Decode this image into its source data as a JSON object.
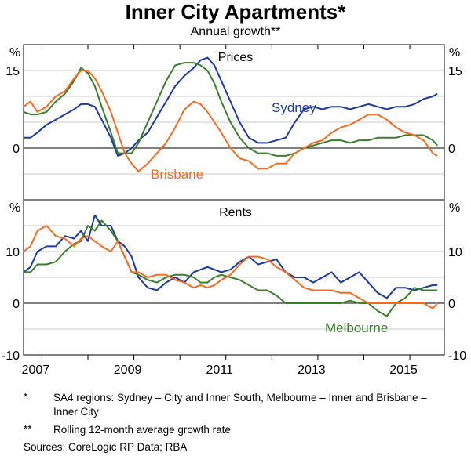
{
  "title": "Inner City Apartments*",
  "subtitle": "Annual growth**",
  "footnotes": {
    "star_mark": "*",
    "star_text": "SA4 regions: Sydney – City and Inner South, Melbourne – Inner and Brisbane – Inner City",
    "dstar_mark": "**",
    "dstar_text": "Rolling 12-month average growth rate",
    "sources": "Sources:   CoreLogic RP Data; RBA"
  },
  "colors": {
    "Sydney": "#1c3a9c",
    "Melbourne": "#3a7d2c",
    "Brisbane": "#f26b21"
  },
  "chart_data": [
    {
      "type": "line",
      "title": "Prices",
      "xlabel": "",
      "ylabel": "%",
      "xlim": [
        2006.6,
        2015.75
      ],
      "ylim": [
        -10,
        20
      ],
      "yticks": [
        -10,
        0,
        15
      ],
      "ytick_labels": [
        "",
        "0",
        "15"
      ],
      "x_ticks": [
        2007,
        2009,
        2011,
        2013,
        2015
      ],
      "x_tick_labels": [
        "2007",
        "2009",
        "2011",
        "2013",
        "2015"
      ],
      "annotations": [
        "Sydney",
        "Brisbane"
      ],
      "series": [
        {
          "name": "Sydney",
          "x": [
            2006.6,
            2006.75,
            2006.9,
            2007.1,
            2007.3,
            2007.5,
            2007.7,
            2007.85,
            2008.0,
            2008.15,
            2008.3,
            2008.5,
            2008.65,
            2008.8,
            2008.95,
            2009.1,
            2009.3,
            2009.5,
            2009.7,
            2009.9,
            2010.1,
            2010.3,
            2010.45,
            2010.6,
            2010.75,
            2010.9,
            2011.1,
            2011.3,
            2011.5,
            2011.7,
            2011.9,
            2012.1,
            2012.3,
            2012.5,
            2012.7,
            2012.9,
            2013.1,
            2013.3,
            2013.5,
            2013.7,
            2013.9,
            2014.1,
            2014.3,
            2014.5,
            2014.7,
            2014.9,
            2015.1,
            2015.3,
            2015.5,
            2015.6
          ],
          "values": [
            2,
            2,
            3,
            4.5,
            5.5,
            6.5,
            7.5,
            8.5,
            8.5,
            8,
            5.5,
            2,
            -1.5,
            -1,
            0,
            1.5,
            3,
            6,
            9,
            12,
            14,
            15.5,
            17,
            17.5,
            16,
            13,
            9,
            5,
            2,
            1,
            1,
            1.5,
            2,
            5,
            7.5,
            8,
            7.5,
            8,
            8,
            7.5,
            8,
            8.5,
            8,
            7.5,
            8,
            8,
            8.5,
            9.5,
            10,
            10.5
          ]
        },
        {
          "name": "Melbourne",
          "x": [
            2006.6,
            2006.75,
            2006.9,
            2007.1,
            2007.3,
            2007.5,
            2007.7,
            2007.85,
            2008.0,
            2008.15,
            2008.3,
            2008.5,
            2008.65,
            2008.8,
            2008.95,
            2009.1,
            2009.3,
            2009.5,
            2009.7,
            2009.9,
            2010.1,
            2010.3,
            2010.45,
            2010.6,
            2010.75,
            2010.9,
            2011.1,
            2011.3,
            2011.5,
            2011.7,
            2011.9,
            2012.1,
            2012.3,
            2012.5,
            2012.7,
            2012.9,
            2013.1,
            2013.3,
            2013.5,
            2013.7,
            2013.9,
            2014.1,
            2014.3,
            2014.5,
            2014.7,
            2014.9,
            2015.1,
            2015.3,
            2015.5,
            2015.6
          ],
          "values": [
            7,
            6.5,
            6.5,
            7,
            9,
            10.5,
            13,
            15.5,
            14.5,
            12,
            8,
            3,
            -1,
            -1,
            -1,
            1,
            5,
            9,
            13,
            16,
            16.5,
            16.5,
            16,
            15,
            12.5,
            9,
            5,
            2,
            0,
            -1,
            -1,
            -1.5,
            -1.5,
            -1,
            0,
            0.5,
            1,
            1.5,
            1.5,
            1,
            1.5,
            1.5,
            2,
            2,
            2,
            2.5,
            2.5,
            2.5,
            1.5,
            0.5
          ]
        },
        {
          "name": "Brisbane",
          "x": [
            2006.6,
            2006.75,
            2006.9,
            2007.1,
            2007.3,
            2007.5,
            2007.7,
            2007.85,
            2008.0,
            2008.15,
            2008.3,
            2008.5,
            2008.65,
            2008.8,
            2008.95,
            2009.1,
            2009.3,
            2009.5,
            2009.7,
            2009.9,
            2010.1,
            2010.3,
            2010.45,
            2010.6,
            2010.75,
            2010.9,
            2011.1,
            2011.3,
            2011.5,
            2011.7,
            2011.9,
            2012.1,
            2012.3,
            2012.5,
            2012.7,
            2012.9,
            2013.1,
            2013.3,
            2013.5,
            2013.7,
            2013.9,
            2014.1,
            2014.3,
            2014.5,
            2014.7,
            2014.9,
            2015.1,
            2015.3,
            2015.5,
            2015.6
          ],
          "values": [
            8,
            9,
            7,
            8,
            10,
            11,
            13.5,
            15,
            15,
            13.5,
            11,
            7,
            3,
            -1,
            -3,
            -4.5,
            -3,
            -1,
            1,
            4,
            7.5,
            9,
            8.5,
            7,
            5,
            3,
            0,
            -2,
            -2.5,
            -4,
            -4,
            -3,
            -3,
            -1,
            0,
            1,
            1.5,
            3,
            4,
            4.5,
            5.5,
            6.5,
            6.5,
            5.5,
            4,
            3,
            2.5,
            1.5,
            -1,
            -1.5
          ]
        }
      ]
    },
    {
      "type": "line",
      "title": "Rents",
      "xlabel": "",
      "ylabel": "%",
      "xlim": [
        2006.6,
        2015.75
      ],
      "ylim": [
        -10,
        20
      ],
      "yticks": [
        -10,
        0,
        10
      ],
      "ytick_labels": [
        "-10",
        "0",
        "10"
      ],
      "x_ticks": [
        2007,
        2009,
        2011,
        2013,
        2015
      ],
      "x_tick_labels": [
        "2007",
        "2009",
        "2011",
        "2013",
        "2015"
      ],
      "annotations": [
        "Melbourne"
      ],
      "series": [
        {
          "name": "Sydney",
          "x": [
            2006.6,
            2006.75,
            2006.9,
            2007.1,
            2007.3,
            2007.5,
            2007.7,
            2007.85,
            2008.0,
            2008.15,
            2008.3,
            2008.5,
            2008.65,
            2008.8,
            2008.95,
            2009.1,
            2009.3,
            2009.5,
            2009.7,
            2009.9,
            2010.1,
            2010.3,
            2010.45,
            2010.6,
            2010.75,
            2010.9,
            2011.1,
            2011.3,
            2011.5,
            2011.7,
            2011.9,
            2012.1,
            2012.3,
            2012.5,
            2012.7,
            2012.9,
            2013.1,
            2013.3,
            2013.5,
            2013.7,
            2013.9,
            2014.1,
            2014.3,
            2014.5,
            2014.7,
            2014.9,
            2015.1,
            2015.3,
            2015.5,
            2015.6
          ],
          "values": [
            6,
            7,
            10,
            11,
            11,
            13,
            12.5,
            14,
            12,
            17,
            15,
            15,
            12,
            11,
            9,
            5,
            3,
            2.5,
            4,
            5,
            4,
            6,
            6.5,
            7,
            6.5,
            6,
            6.5,
            8,
            9,
            7.5,
            8,
            8.5,
            6,
            5,
            5,
            4,
            5,
            6,
            4,
            5,
            6,
            4,
            2,
            1,
            3,
            3,
            2.5,
            3,
            3.5,
            3.5
          ]
        },
        {
          "name": "Melbourne",
          "x": [
            2006.6,
            2006.75,
            2006.9,
            2007.1,
            2007.3,
            2007.5,
            2007.7,
            2007.85,
            2008.0,
            2008.15,
            2008.3,
            2008.5,
            2008.65,
            2008.8,
            2008.95,
            2009.1,
            2009.3,
            2009.5,
            2009.7,
            2009.9,
            2010.1,
            2010.3,
            2010.45,
            2010.6,
            2010.75,
            2010.9,
            2011.1,
            2011.3,
            2011.5,
            2011.7,
            2011.9,
            2012.1,
            2012.3,
            2012.5,
            2012.7,
            2012.9,
            2013.1,
            2013.3,
            2013.5,
            2013.7,
            2013.9,
            2014.1,
            2014.3,
            2014.5,
            2014.7,
            2014.9,
            2015.1,
            2015.3,
            2015.5,
            2015.6
          ],
          "values": [
            6,
            6,
            7.5,
            7.5,
            8,
            10,
            11.5,
            12,
            15,
            14,
            16,
            14,
            12,
            9,
            6,
            5.5,
            4.5,
            4,
            5,
            5.5,
            5.5,
            5,
            4,
            4,
            5,
            5.5,
            5,
            4.5,
            3.5,
            2.5,
            2.5,
            1.5,
            0,
            0,
            0,
            0,
            0,
            0,
            0,
            0.5,
            0,
            0,
            -1.5,
            -2.5,
            0,
            1,
            3,
            2.5,
            2.5,
            2.5
          ]
        },
        {
          "name": "Brisbane",
          "x": [
            2006.6,
            2006.75,
            2006.9,
            2007.1,
            2007.3,
            2007.5,
            2007.7,
            2007.85,
            2008.0,
            2008.15,
            2008.3,
            2008.5,
            2008.65,
            2008.8,
            2008.95,
            2009.1,
            2009.3,
            2009.5,
            2009.7,
            2009.9,
            2010.1,
            2010.3,
            2010.45,
            2010.6,
            2010.75,
            2010.9,
            2011.1,
            2011.3,
            2011.5,
            2011.7,
            2011.9,
            2012.1,
            2012.3,
            2012.5,
            2012.7,
            2012.9,
            2013.1,
            2013.3,
            2013.5,
            2013.7,
            2013.9,
            2014.1,
            2014.3,
            2014.5,
            2014.7,
            2014.9,
            2015.1,
            2015.3,
            2015.5,
            2015.6
          ],
          "values": [
            10,
            11,
            14,
            15,
            13,
            12.5,
            11,
            12.5,
            13,
            12,
            11,
            10,
            12,
            9,
            6,
            6,
            5,
            5.5,
            5.5,
            4.5,
            4,
            3,
            3.5,
            3,
            3.5,
            4.5,
            5.5,
            7.5,
            9,
            9,
            8.5,
            7,
            6,
            4.5,
            3,
            2.5,
            2.5,
            2.5,
            2,
            2,
            1,
            0,
            0,
            0,
            0,
            0,
            0,
            0,
            -1,
            0
          ]
        }
      ]
    }
  ]
}
